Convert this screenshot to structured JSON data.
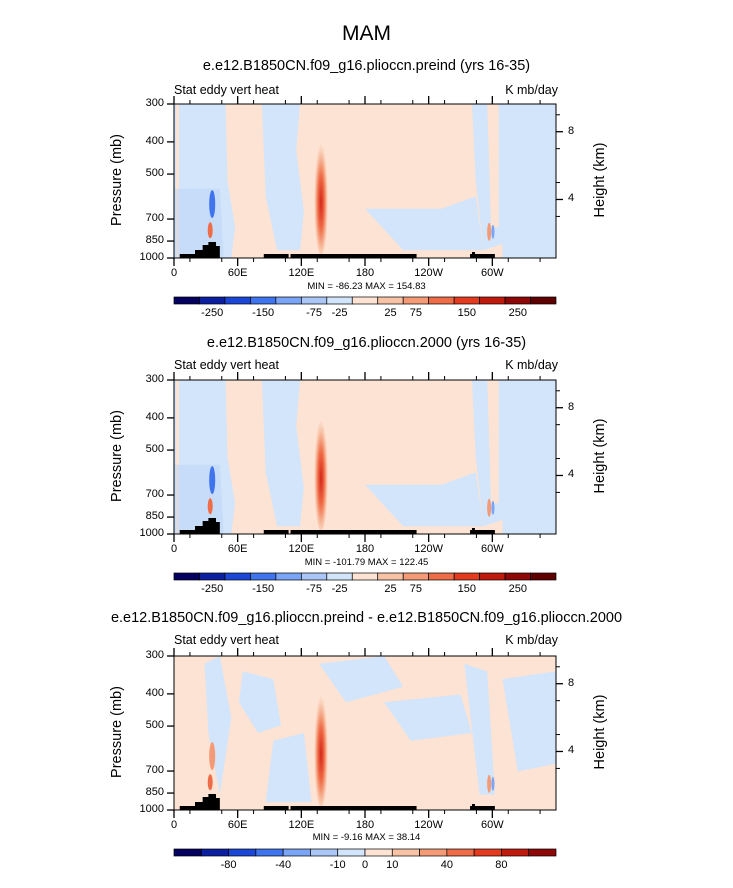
{
  "figure_title": "MAM",
  "colors": {
    "blue_bg": "#d2e5fa",
    "peach_bg": "#fde3d3",
    "land": "#000000"
  },
  "chart_data": [
    {
      "type": "heatmap",
      "title": "e.e12.B1850CN.f09_g16.plioccn.preind (yrs 16-35)",
      "variable_label": "Stat eddy vert heat",
      "units": "K mb/day",
      "ylabel": "Pressure (mb)",
      "ylabel_right": "Height (km)",
      "y_ticks": [
        "300",
        "400",
        "500",
        "700",
        "850",
        "1000"
      ],
      "y_right_ticks": [
        "8",
        "4"
      ],
      "x_ticks": [
        "0",
        "60E",
        "120E",
        "180",
        "120W",
        "60W"
      ],
      "min_max": "MIN = -86.23   MAX = 154.83",
      "colorbar_labels": [
        "-250",
        "-150",
        "-75",
        "-25",
        "25",
        "75",
        "150",
        "250"
      ],
      "colorbar_colors": [
        "#05005f",
        "#0b1fa0",
        "#1c47d6",
        "#3f74ee",
        "#7aa4f5",
        "#a9c6f7",
        "#d2e5fa",
        "#fde3d3",
        "#f8c2a5",
        "#f49a76",
        "#ee6d48",
        "#e43b20",
        "#c01a0c",
        "#8f0808",
        "#5f0000"
      ]
    },
    {
      "type": "heatmap",
      "title": "e.e12.B1850CN.f09_g16.plioccn.2000 (yrs 16-35)",
      "variable_label": "Stat eddy vert heat",
      "units": "K mb/day",
      "ylabel": "Pressure (mb)",
      "ylabel_right": "Height (km)",
      "y_ticks": [
        "300",
        "400",
        "500",
        "700",
        "850",
        "1000"
      ],
      "y_right_ticks": [
        "8",
        "4"
      ],
      "x_ticks": [
        "0",
        "60E",
        "120E",
        "180",
        "120W",
        "60W"
      ],
      "min_max": "MIN = -101.79   MAX = 122.45",
      "colorbar_labels": [
        "-250",
        "-150",
        "-75",
        "-25",
        "25",
        "75",
        "150",
        "250"
      ],
      "colorbar_colors": [
        "#05005f",
        "#0b1fa0",
        "#1c47d6",
        "#3f74ee",
        "#7aa4f5",
        "#a9c6f7",
        "#d2e5fa",
        "#fde3d3",
        "#f8c2a5",
        "#f49a76",
        "#ee6d48",
        "#e43b20",
        "#c01a0c",
        "#8f0808",
        "#5f0000"
      ]
    },
    {
      "type": "heatmap",
      "title": "e.e12.B1850CN.f09_g16.plioccn.preind - e.e12.B1850CN.f09_g16.plioccn.2000",
      "variable_label": "Stat eddy vert heat",
      "units": "K mb/day",
      "ylabel": "Pressure (mb)",
      "ylabel_right": "Height (km)",
      "y_ticks": [
        "300",
        "400",
        "500",
        "700",
        "850",
        "1000"
      ],
      "y_right_ticks": [
        "8",
        "4"
      ],
      "x_ticks": [
        "0",
        "60E",
        "120E",
        "180",
        "120W",
        "60W"
      ],
      "min_max": "MIN =  -9.16   MAX =  38.14",
      "colorbar_labels": [
        "-80",
        "-40",
        "-10",
        "0",
        "10",
        "40",
        "80"
      ],
      "colorbar_colors": [
        "#05005f",
        "#0b1fa0",
        "#1c47d6",
        "#3f74ee",
        "#7aa4f5",
        "#a9c6f7",
        "#d2e5fa",
        "#fde3d3",
        "#f8c2a5",
        "#f49a76",
        "#ee6d48",
        "#e43b20",
        "#c01a0c",
        "#8f0808"
      ]
    }
  ]
}
